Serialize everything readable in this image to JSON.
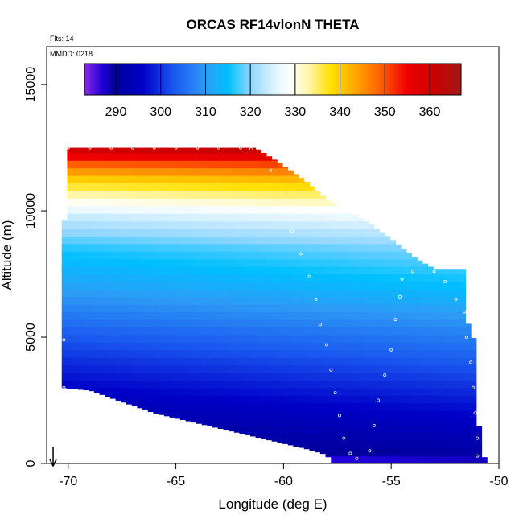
{
  "chart_data": {
    "type": "heatmap",
    "title": "ORCAS RF14vlonN THETA",
    "flights_label": "Flts: 14",
    "date_label": "MMDD: 0218",
    "xlabel": "Longitude (deg E)",
    "ylabel": "Altitude (m)",
    "xlim": [
      -71,
      -50
    ],
    "ylim": [
      0,
      16500
    ],
    "xticks": [
      -70,
      -65,
      -60,
      -55,
      -50
    ],
    "yticks": [
      0,
      5000,
      10000,
      15000
    ],
    "colorbar": {
      "range": [
        283,
        367
      ],
      "ticks": [
        290,
        300,
        310,
        320,
        330,
        340,
        350,
        360
      ],
      "stops": [
        {
          "v": 283,
          "c": "#8a2be2"
        },
        {
          "v": 287,
          "c": "#2000d8"
        },
        {
          "v": 290,
          "c": "#00009a"
        },
        {
          "v": 296,
          "c": "#0000c8"
        },
        {
          "v": 303,
          "c": "#1a58f0"
        },
        {
          "v": 310,
          "c": "#2e9bf5"
        },
        {
          "v": 315,
          "c": "#00c0ff"
        },
        {
          "v": 320,
          "c": "#8fd6ff"
        },
        {
          "v": 326,
          "c": "#e8f7ff"
        },
        {
          "v": 329,
          "c": "#ffffff"
        },
        {
          "v": 333,
          "c": "#fff6a8"
        },
        {
          "v": 338,
          "c": "#ffe000"
        },
        {
          "v": 343,
          "c": "#ffac00"
        },
        {
          "v": 349,
          "c": "#ff6000"
        },
        {
          "v": 355,
          "c": "#f00000"
        },
        {
          "v": 361,
          "c": "#cc0000"
        },
        {
          "v": 367,
          "c": "#a01818"
        }
      ]
    },
    "field": {
      "lon_step": 0.25,
      "alt_step": 300,
      "upper_boundary": [
        [
          -70.3,
          6800
        ],
        [
          -70.05,
          12500
        ],
        [
          -61.3,
          12500
        ],
        [
          -60.0,
          11800
        ],
        [
          -59.0,
          11200
        ],
        [
          -58.0,
          10500
        ],
        [
          -57.0,
          10000
        ],
        [
          -56.0,
          9500
        ],
        [
          -55.0,
          8900
        ],
        [
          -54.0,
          8200
        ],
        [
          -53.0,
          7700
        ],
        [
          -51.6,
          7700
        ],
        [
          -51.5,
          5700
        ],
        [
          -51.1,
          4800
        ],
        [
          -50.9,
          1000
        ],
        [
          -50.6,
          0
        ]
      ],
      "lower_boundary": [
        [
          -70.3,
          3000
        ],
        [
          -69.0,
          2900
        ],
        [
          -68.0,
          2600
        ],
        [
          -67.0,
          2300
        ],
        [
          -66.0,
          2000
        ],
        [
          -65.0,
          1800
        ],
        [
          -64.0,
          1600
        ],
        [
          -63.0,
          1400
        ],
        [
          -62.0,
          1200
        ],
        [
          -61.0,
          1000
        ],
        [
          -60.0,
          800
        ],
        [
          -59.0,
          600
        ],
        [
          -58.0,
          350
        ],
        [
          -57.7,
          0
        ],
        [
          -50.6,
          0
        ]
      ],
      "theta_profile": [
        [
          0,
          285
        ],
        [
          500,
          290
        ],
        [
          1500,
          293
        ],
        [
          3000,
          298
        ],
        [
          5000,
          305
        ],
        [
          7000,
          313
        ],
        [
          8500,
          318
        ],
        [
          9800,
          326
        ],
        [
          10500,
          333
        ],
        [
          11200,
          341
        ],
        [
          11800,
          350
        ],
        [
          12500,
          364
        ]
      ],
      "lon_gradient_K_per_deg": 0.2
    },
    "flight_track": [
      [
        -70.0,
        12500
      ],
      [
        -69.0,
        12500
      ],
      [
        -68.0,
        12500
      ],
      [
        -67.0,
        12500
      ],
      [
        -66.0,
        12500
      ],
      [
        -65.0,
        12500
      ],
      [
        -64.0,
        12500
      ],
      [
        -63.0,
        12500
      ],
      [
        -62.0,
        12500
      ],
      [
        -61.5,
        12450
      ],
      [
        -60.6,
        11600
      ],
      [
        -59.8,
        10200
      ],
      [
        -59.6,
        9200
      ],
      [
        -59.2,
        8300
      ],
      [
        -58.8,
        7400
      ],
      [
        -58.5,
        6500
      ],
      [
        -58.3,
        5500
      ],
      [
        -58.0,
        4700
      ],
      [
        -57.8,
        3700
      ],
      [
        -57.6,
        2800
      ],
      [
        -57.4,
        1900
      ],
      [
        -57.2,
        1000
      ],
      [
        -56.9,
        400
      ],
      [
        -56.6,
        200
      ],
      [
        -56.0,
        500
      ],
      [
        -55.8,
        1500
      ],
      [
        -55.6,
        2500
      ],
      [
        -55.3,
        3500
      ],
      [
        -55.0,
        4500
      ],
      [
        -54.8,
        5700
      ],
      [
        -54.6,
        6600
      ],
      [
        -54.5,
        7300
      ],
      [
        -54.0,
        7600
      ],
      [
        -53.0,
        7600
      ],
      [
        -52.5,
        7200
      ],
      [
        -52.0,
        6500
      ],
      [
        -51.6,
        6000
      ],
      [
        -51.5,
        5000
      ],
      [
        -51.3,
        4000
      ],
      [
        -51.2,
        3000
      ],
      [
        -51.1,
        2000
      ],
      [
        -51.0,
        1000
      ],
      [
        -51.0,
        300
      ],
      [
        -71.0,
        9000
      ],
      [
        -70.2,
        4900
      ],
      [
        -70.2,
        3000
      ]
    ],
    "arrow_longitude": -70.7
  }
}
